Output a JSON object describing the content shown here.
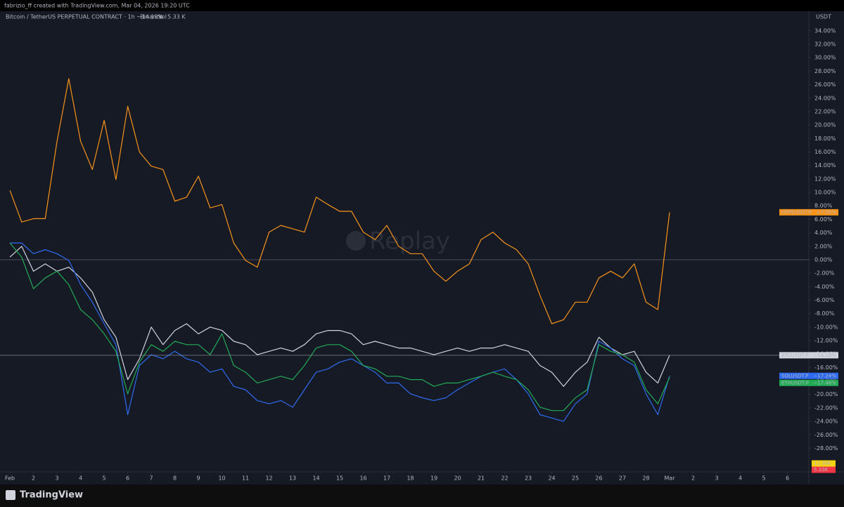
{
  "chart_data": {
    "type": "line",
    "credit": "fabrizio_ff created with TradingView.com, Mar 04, 2026 19:20 UTC",
    "subtitle": "Bitcoin / TetherUS PERPETUAL CONTRACT · 1h · Binance",
    "change_label": "−14.18%",
    "volume_name": "Vol",
    "volume_value": "5.33 K",
    "currency": "USDT",
    "watermark": "Replay",
    "brand": "TradingView",
    "volume_markers": [
      {
        "label": "12.36K",
        "color": "#f5d30f"
      },
      {
        "label": "5.33K",
        "color": "#f23645"
      }
    ],
    "x": [
      0,
      0.5,
      1,
      1.5,
      2,
      2.5,
      3,
      3.5,
      4,
      4.5,
      5,
      5.5,
      6,
      6.5,
      7,
      7.5,
      8,
      8.5,
      9,
      9.5,
      10,
      10.5,
      11,
      11.5,
      12,
      12.5,
      13,
      13.5,
      14,
      14.5,
      15,
      15.5,
      16,
      16.5,
      17,
      17.5,
      18,
      18.5,
      19,
      19.5,
      20,
      20.5,
      21,
      21.5,
      22,
      22.5,
      23,
      23.5,
      24,
      24.5,
      25,
      25.5,
      26,
      26.5,
      27,
      27.5,
      28
    ],
    "series": [
      {
        "name": "HYPEUSDT.P",
        "color": "#f7931a",
        "last_label": "+7.05%",
        "values": [
          10.3,
          5.6,
          6.1,
          6.1,
          17.6,
          26.9,
          17.6,
          13.4,
          20.7,
          11.9,
          22.8,
          16.0,
          13.9,
          13.4,
          8.7,
          9.3,
          12.4,
          7.7,
          8.2,
          2.5,
          -0.1,
          -1.1,
          4.1,
          5.1,
          4.6,
          4.1,
          9.3,
          8.2,
          7.2,
          7.2,
          4.1,
          3.0,
          5.1,
          2.0,
          0.9,
          0.9,
          -1.7,
          -3.2,
          -1.7,
          -0.6,
          3.0,
          4.1,
          2.5,
          1.5,
          -0.6,
          -5.3,
          -9.5,
          -8.9,
          -6.3,
          -6.3,
          -2.7,
          -1.7,
          -2.7,
          -0.6,
          -6.3,
          -7.4,
          7.05
        ]
      },
      {
        "name": "BTCUSDT.P",
        "color": "#d1d4dc",
        "last_label": "−14.18%",
        "values": [
          0.4,
          2.0,
          -1.7,
          -0.6,
          -1.7,
          -1.1,
          -2.7,
          -4.8,
          -8.9,
          -11.5,
          -17.8,
          -14.7,
          -10.0,
          -12.6,
          -10.5,
          -9.5,
          -11.0,
          -10.0,
          -10.5,
          -12.1,
          -12.6,
          -14.1,
          -13.6,
          -13.1,
          -13.6,
          -12.6,
          -11.0,
          -10.5,
          -10.5,
          -11.0,
          -12.6,
          -12.1,
          -12.6,
          -13.1,
          -13.1,
          -13.6,
          -14.1,
          -13.6,
          -13.1,
          -13.6,
          -13.1,
          -13.1,
          -12.6,
          -13.1,
          -13.6,
          -15.7,
          -16.7,
          -18.8,
          -16.7,
          -15.2,
          -11.5,
          -13.1,
          -14.1,
          -13.6,
          -16.7,
          -18.3,
          -14.18
        ]
      },
      {
        "name": "SOLUSDT.P",
        "color": "#2f6bf0",
        "last_label": "−17.24%",
        "values": [
          2.5,
          2.5,
          0.9,
          1.5,
          0.9,
          -0.1,
          -3.7,
          -6.3,
          -9.5,
          -12.6,
          -23.0,
          -15.7,
          -14.1,
          -14.7,
          -13.6,
          -14.7,
          -15.2,
          -16.7,
          -16.2,
          -18.8,
          -19.3,
          -20.9,
          -21.4,
          -20.9,
          -21.9,
          -19.3,
          -16.7,
          -16.2,
          -15.2,
          -14.7,
          -15.7,
          -16.7,
          -18.3,
          -18.3,
          -19.9,
          -20.5,
          -20.9,
          -20.5,
          -19.3,
          -18.3,
          -17.3,
          -16.7,
          -16.2,
          -17.8,
          -19.9,
          -23.0,
          -23.5,
          -24.0,
          -21.4,
          -19.9,
          -12.1,
          -13.1,
          -14.7,
          -15.7,
          -19.9,
          -23.0,
          -17.24
        ]
      },
      {
        "name": "ETHUSDT.P",
        "color": "#22ab55",
        "last_label": "−17.46%",
        "values": [
          2.5,
          0.4,
          -4.3,
          -2.7,
          -1.7,
          -3.7,
          -7.4,
          -8.9,
          -11.0,
          -13.6,
          -19.9,
          -15.2,
          -12.6,
          -13.6,
          -12.1,
          -12.6,
          -12.6,
          -14.1,
          -11.0,
          -15.7,
          -16.7,
          -18.3,
          -17.8,
          -17.3,
          -17.8,
          -15.7,
          -13.1,
          -12.6,
          -12.6,
          -13.6,
          -15.7,
          -16.2,
          -17.3,
          -17.3,
          -17.8,
          -17.8,
          -18.8,
          -18.3,
          -18.3,
          -17.8,
          -17.3,
          -16.7,
          -17.3,
          -17.8,
          -19.3,
          -21.9,
          -22.4,
          -22.4,
          -20.5,
          -19.3,
          -12.6,
          -13.6,
          -14.1,
          -15.2,
          -19.3,
          -21.4,
          -17.46
        ]
      }
    ],
    "xlim": [
      -0.42,
      33.91
    ],
    "xticks": [
      {
        "value": 0,
        "label": "Feb"
      },
      {
        "value": 1,
        "label": "2"
      },
      {
        "value": 2,
        "label": "3"
      },
      {
        "value": 3,
        "label": "4"
      },
      {
        "value": 4,
        "label": "5"
      },
      {
        "value": 5,
        "label": "6"
      },
      {
        "value": 6,
        "label": "7"
      },
      {
        "value": 7,
        "label": "8"
      },
      {
        "value": 8,
        "label": "9"
      },
      {
        "value": 9,
        "label": "10"
      },
      {
        "value": 10,
        "label": "11"
      },
      {
        "value": 11,
        "label": "12"
      },
      {
        "value": 12,
        "label": "13"
      },
      {
        "value": 13,
        "label": "14"
      },
      {
        "value": 14,
        "label": "15"
      },
      {
        "value": 15,
        "label": "16"
      },
      {
        "value": 16,
        "label": "17"
      },
      {
        "value": 17,
        "label": "18"
      },
      {
        "value": 18,
        "label": "19"
      },
      {
        "value": 19,
        "label": "20"
      },
      {
        "value": 20,
        "label": "21"
      },
      {
        "value": 21,
        "label": "22"
      },
      {
        "value": 22,
        "label": "23"
      },
      {
        "value": 23,
        "label": "24"
      },
      {
        "value": 24,
        "label": "25"
      },
      {
        "value": 25,
        "label": "26"
      },
      {
        "value": 26,
        "label": "27"
      },
      {
        "value": 27,
        "label": "28"
      },
      {
        "value": 28,
        "label": "Mar"
      },
      {
        "value": 29,
        "label": "2"
      },
      {
        "value": 30,
        "label": "3"
      },
      {
        "value": 31,
        "label": "4"
      },
      {
        "value": 32,
        "label": "5"
      },
      {
        "value": 33,
        "label": "6"
      }
    ],
    "ylim": [
      -31.5,
      36.7
    ],
    "yticks": [
      {
        "value": -28,
        "label": "-28.00%"
      },
      {
        "value": -26,
        "label": "-26.00%"
      },
      {
        "value": -24,
        "label": "-24.00%"
      },
      {
        "value": -22,
        "label": "-22.00%"
      },
      {
        "value": -20,
        "label": "-20.00%"
      },
      {
        "value": -18,
        "label": "-18.00%"
      },
      {
        "value": -16,
        "label": "-16.00%"
      },
      {
        "value": -14,
        "label": "-14.00%"
      },
      {
        "value": -12,
        "label": "-12.00%"
      },
      {
        "value": -10,
        "label": "-10.00%"
      },
      {
        "value": -8,
        "label": "-8.00%"
      },
      {
        "value": -6,
        "label": "-6.00%"
      },
      {
        "value": -4,
        "label": "-4.00%"
      },
      {
        "value": -2,
        "label": "-2.00%"
      },
      {
        "value": 0,
        "label": "0.00%"
      },
      {
        "value": 2,
        "label": "2.00%"
      },
      {
        "value": 4,
        "label": "4.00%"
      },
      {
        "value": 6,
        "label": "6.00%"
      },
      {
        "value": 8,
        "label": "8.00%"
      },
      {
        "value": 10,
        "label": "10.00%"
      },
      {
        "value": 12,
        "label": "12.00%"
      },
      {
        "value": 14,
        "label": "14.00%"
      },
      {
        "value": 16,
        "label": "16.00%"
      },
      {
        "value": 18,
        "label": "18.00%"
      },
      {
        "value": 20,
        "label": "20.00%"
      },
      {
        "value": 22,
        "label": "22.00%"
      },
      {
        "value": 24,
        "label": "24.00%"
      },
      {
        "value": 26,
        "label": "26.00%"
      },
      {
        "value": 28,
        "label": "28.00%"
      },
      {
        "value": 30,
        "label": "30.00%"
      },
      {
        "value": 32,
        "label": "32.00%"
      },
      {
        "value": 34,
        "label": "34.00%"
      }
    ]
  }
}
